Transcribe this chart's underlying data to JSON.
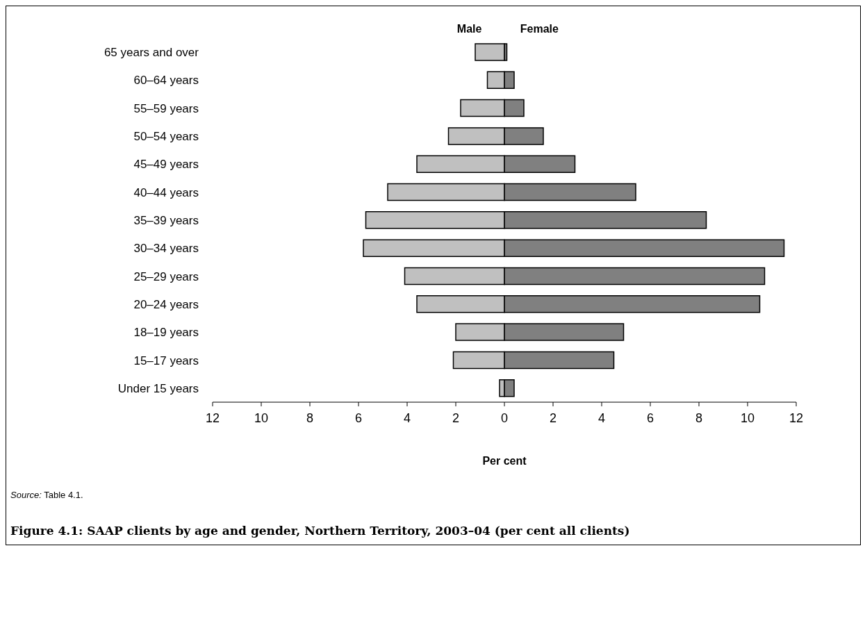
{
  "chart_data": {
    "type": "bar",
    "orientation": "horizontal",
    "stacked": true,
    "title": "Figure 4.1: SAAP clients by age and gender, Northern Territory, 2003–04 (per cent all clients)",
    "xlabel": "Per cent",
    "annotations": [
      "Source: Table 4.1."
    ],
    "categories": [
      "65 years and over",
      "60–64 years",
      "55–59 years",
      "50–54 years",
      "45–49 years",
      "40–44 years",
      "35–39 years",
      "30–34 years",
      "25–29 years",
      "20–24 years",
      "18–19 years",
      "15–17 years",
      "Under 15 years"
    ],
    "series": [
      {
        "name": "Male",
        "color": "#c0c0c0",
        "values": [
          -1.2,
          -0.7,
          -1.8,
          -2.3,
          -3.6,
          -4.8,
          -5.7,
          -5.8,
          -4.1,
          -3.6,
          -2.0,
          -2.1,
          -0.2
        ]
      },
      {
        "name": "Female",
        "color": "#808080",
        "values": [
          0.1,
          0.4,
          0.8,
          1.6,
          2.9,
          5.4,
          8.3,
          11.5,
          10.7,
          10.5,
          4.9,
          4.5,
          0.4
        ]
      }
    ],
    "xlim": [
      -12,
      12
    ],
    "xticks": [
      {
        "value": -12,
        "label": "12"
      },
      {
        "value": -10,
        "label": "10"
      },
      {
        "value": -8,
        "label": "8"
      },
      {
        "value": -6,
        "label": "6"
      },
      {
        "value": -4,
        "label": "4"
      },
      {
        "value": -2,
        "label": "2"
      },
      0,
      2,
      4,
      6,
      8,
      10,
      12
    ],
    "grid": false,
    "legend": false
  }
}
